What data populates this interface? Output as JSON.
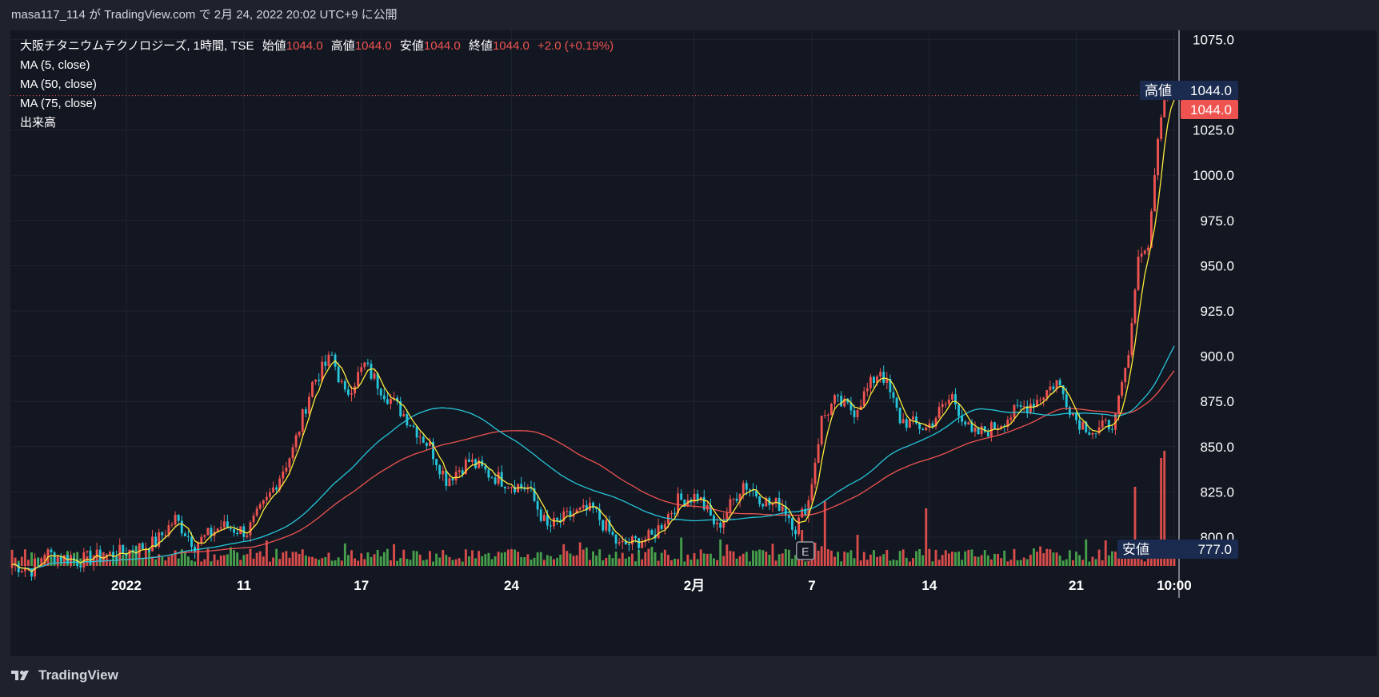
{
  "header": {
    "publish_line": "masa117_114 が TradingView.com で 2月 24, 2022 20:02 UTC+9 に公開"
  },
  "legend": {
    "symbol": "大阪チタニウムテクノロジーズ, 1時間, TSE",
    "open_label": "始値",
    "open": "1044.0",
    "high_label": "高値",
    "high": "1044.0",
    "low_label": "安値",
    "low": "1044.0",
    "close_label": "終値",
    "close": "1044.0",
    "change": "+2.0 (+0.19%)",
    "indicators": [
      "MA (5, close)",
      "MA (50, close)",
      "MA (75, close)",
      "出来高"
    ]
  },
  "price_tags": {
    "high_label": "高値",
    "high_value": "1044.0",
    "last_value": "1044.0",
    "low_label": "安値",
    "low_value": "777.0"
  },
  "event_marker": "E",
  "footer": {
    "brand": "TradingView"
  },
  "colors": {
    "background": "#131722",
    "up": "#ef5350",
    "down": "#26c6da",
    "ma5": "#ffeb3b",
    "ma50": "#26c6da",
    "ma75": "#ef5350",
    "vol_up": "#ef5350",
    "vol_down": "#4caf50",
    "grid": "#1f2431",
    "tag_dark": "#1a2b4f",
    "tag_last": "#ef5350"
  },
  "chart_data": {
    "type": "candlestick",
    "title": "大阪チタニウムテクノロジーズ, 1時間, TSE",
    "y_ticks": [
      800.0,
      825.0,
      850.0,
      875.0,
      900.0,
      925.0,
      950.0,
      975.0,
      1000.0,
      1025.0,
      1075.0
    ],
    "y_range": [
      777,
      1090
    ],
    "x_ticks": [
      {
        "label": "2022",
        "index": 35
      },
      {
        "label": "11",
        "index": 71
      },
      {
        "label": "17",
        "index": 107
      },
      {
        "label": "24",
        "index": 153
      },
      {
        "label": "2月",
        "index": 209
      },
      {
        "label": "7",
        "index": 245
      },
      {
        "label": "14",
        "index": 281
      },
      {
        "label": "21",
        "index": 326
      },
      {
        "label": "10:00",
        "index": 356
      }
    ],
    "bar_count": 357,
    "close_anchors": [
      [
        0,
        785
      ],
      [
        6,
        782
      ],
      [
        10,
        791
      ],
      [
        20,
        787
      ],
      [
        35,
        792
      ],
      [
        44,
        797
      ],
      [
        50,
        810
      ],
      [
        56,
        796
      ],
      [
        64,
        806
      ],
      [
        72,
        803
      ],
      [
        78,
        820
      ],
      [
        86,
        848
      ],
      [
        92,
        885
      ],
      [
        98,
        900
      ],
      [
        102,
        878
      ],
      [
        108,
        895
      ],
      [
        114,
        880
      ],
      [
        120,
        868
      ],
      [
        128,
        850
      ],
      [
        133,
        832
      ],
      [
        140,
        842
      ],
      [
        146,
        835
      ],
      [
        152,
        830
      ],
      [
        158,
        827
      ],
      [
        164,
        805
      ],
      [
        172,
        813
      ],
      [
        178,
        815
      ],
      [
        186,
        795
      ],
      [
        196,
        800
      ],
      [
        204,
        820
      ],
      [
        210,
        823
      ],
      [
        216,
        805
      ],
      [
        224,
        830
      ],
      [
        232,
        818
      ],
      [
        236,
        818
      ],
      [
        240,
        805
      ],
      [
        244,
        820
      ],
      [
        248,
        865
      ],
      [
        252,
        875
      ],
      [
        258,
        870
      ],
      [
        266,
        893
      ],
      [
        272,
        865
      ],
      [
        280,
        860
      ],
      [
        288,
        878
      ],
      [
        294,
        856
      ],
      [
        300,
        860
      ],
      [
        308,
        870
      ],
      [
        314,
        876
      ],
      [
        320,
        886
      ],
      [
        326,
        865
      ],
      [
        332,
        858
      ],
      [
        338,
        865
      ],
      [
        342,
        900
      ],
      [
        345,
        955
      ],
      [
        348,
        960
      ],
      [
        351,
        1020
      ],
      [
        353,
        1044
      ],
      [
        356,
        1044
      ]
    ],
    "volume_spikes": [
      [
        242,
        5
      ],
      [
        249,
        9
      ],
      [
        280,
        8
      ],
      [
        344,
        11
      ],
      [
        352,
        15
      ],
      [
        353,
        16
      ]
    ],
    "ma5_period": 5,
    "ma50_period": 50,
    "ma75_period": 75
  }
}
